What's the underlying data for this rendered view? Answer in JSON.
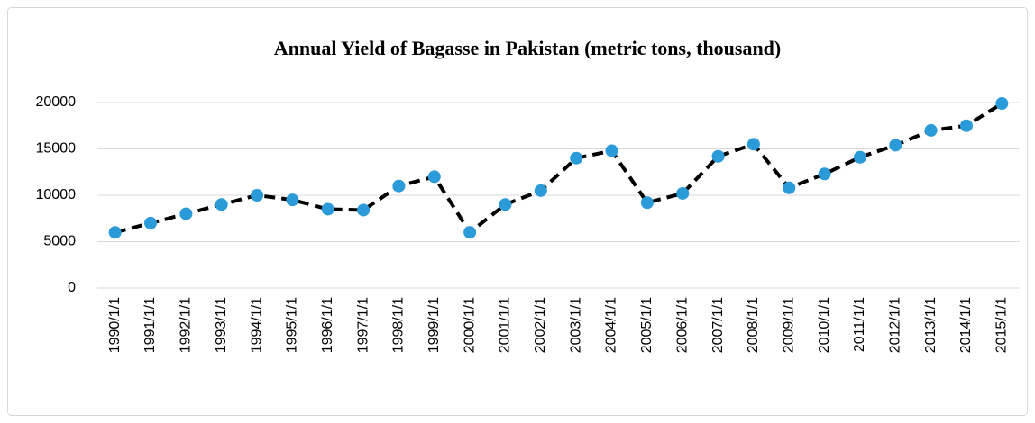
{
  "chart_data": {
    "type": "line",
    "title": "Annual Yield of Bagasse in Pakistan (metric tons, thousand)",
    "categories": [
      "1990/1/1",
      "1991/1/1",
      "1992/1/1",
      "1993/1/1",
      "1994/1/1",
      "1995/1/1",
      "1996/1/1",
      "1997/1/1",
      "1998/1/1",
      "1999/1/1",
      "2000/1/1",
      "2001/1/1",
      "2002/1/1",
      "2003/1/1",
      "2004/1/1",
      "2005/1/1",
      "2006/1/1",
      "2007/1/1",
      "2008/1/1",
      "2009/1/1",
      "2010/1/1",
      "2011/1/1",
      "2012/1/1",
      "2013/1/1",
      "2014/1/1",
      "2015/1/1"
    ],
    "values": [
      6000,
      7000,
      8000,
      9000,
      10000,
      9500,
      8500,
      8400,
      11000,
      12000,
      6000,
      9000,
      10500,
      14000,
      14800,
      9200,
      10200,
      14200,
      15500,
      10800,
      12300,
      14100,
      15400,
      17000,
      17500,
      19900
    ],
    "color": "#2a9ad8",
    "line_color": "#000000",
    "line_style": "dashed",
    "ylim": [
      0,
      20000
    ],
    "yticks": [
      0,
      5000,
      10000,
      15000,
      20000
    ],
    "grid": true
  }
}
